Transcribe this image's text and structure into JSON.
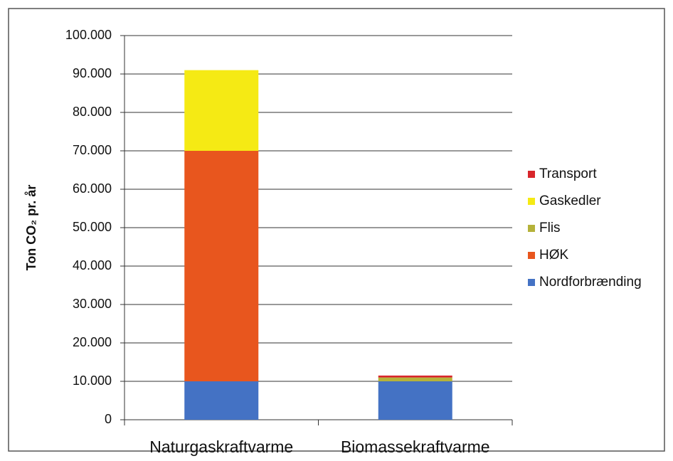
{
  "chart_data": {
    "type": "stacked_bar",
    "y_label": "Ton CO₂ pr. år",
    "categories": [
      "Naturgaskraftvarme",
      "Biomassekraftvarme"
    ],
    "series": [
      {
        "name": "Nordforbrænding",
        "color": "#4472c4",
        "values": [
          10000,
          10000
        ]
      },
      {
        "name": "HØK",
        "color": "#e8561e",
        "values": [
          60000,
          0
        ]
      },
      {
        "name": "Flis",
        "color": "#b5b23a",
        "values": [
          0,
          1000
        ]
      },
      {
        "name": "Gaskedler",
        "color": "#f5ea14",
        "values": [
          21000,
          0
        ]
      },
      {
        "name": "Transport",
        "color": "#d8262b",
        "values": [
          0,
          500
        ]
      }
    ],
    "ylim": [
      0,
      100000
    ],
    "yticks": [
      0,
      {
        "value": 10000,
        "label": "10.000"
      },
      {
        "value": 20000,
        "label": "20.000"
      },
      {
        "value": 30000,
        "label": "30.000"
      },
      {
        "value": 40000,
        "label": "40.000"
      },
      {
        "value": 50000,
        "label": "50.000"
      },
      {
        "value": 60000,
        "label": "60.000"
      },
      {
        "value": 70000,
        "label": "70.000"
      },
      {
        "value": 80000,
        "label": "80.000"
      },
      {
        "value": 90000,
        "label": "90.000"
      },
      {
        "value": 100000,
        "label": "100.000"
      }
    ],
    "grid": true
  }
}
